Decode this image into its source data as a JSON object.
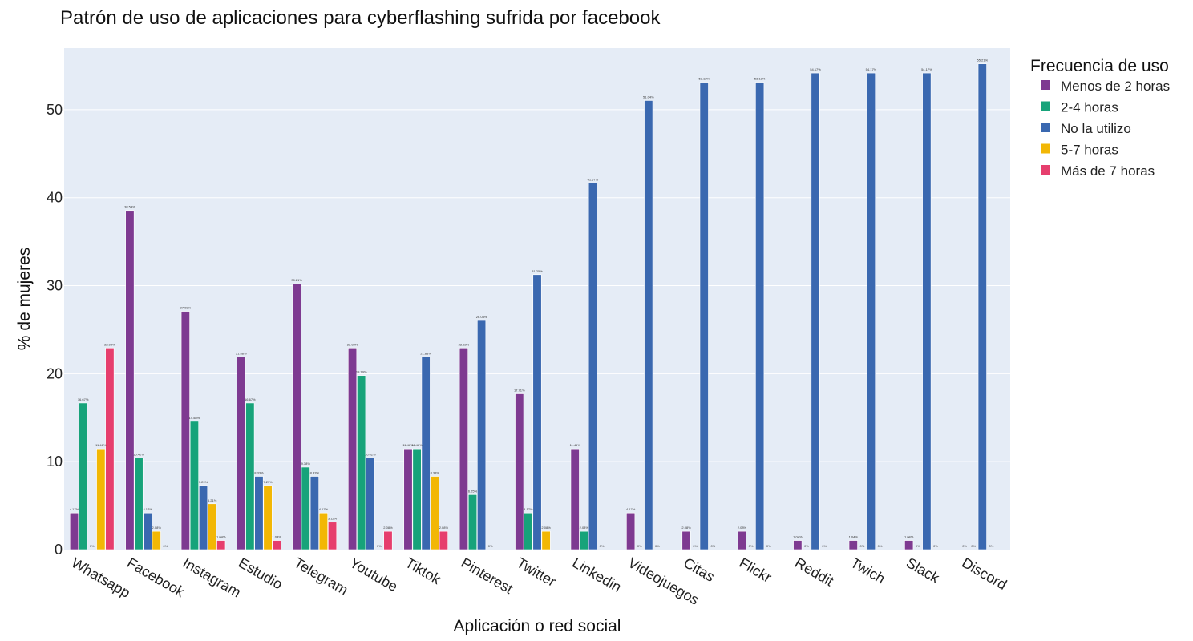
{
  "chart_data": {
    "type": "bar",
    "title": "Patrón de uso de aplicaciones para cyberflashing sufrida por facebook",
    "xlabel": "Aplicación o red social",
    "ylabel": "% de mujeres",
    "ylim": [
      0,
      57
    ],
    "yticks": [
      0,
      10,
      20,
      30,
      40,
      50
    ],
    "grid": true,
    "legend": {
      "title": "Frecuencia de uso",
      "placement": "top-right"
    },
    "categories": [
      "Whatsapp",
      "Facebook",
      "Instagram",
      "Estudio",
      "Telegram",
      "Youtube",
      "Tiktok",
      "Pinterest",
      "Twitter",
      "Linkedin",
      "Videojuegos",
      "Citas",
      "Flickr",
      "Reddit",
      "Twich",
      "Slack",
      "Discord"
    ],
    "series": [
      {
        "name": "Menos de 2 horas",
        "color": "#7e3a91",
        "values": [
          4.17,
          38.54,
          27.08,
          21.88,
          30.21,
          22.92,
          11.46,
          22.92,
          17.71,
          11.46,
          4.17,
          2.08,
          2.08,
          1.04,
          1.04,
          1.04,
          0
        ],
        "labels": [
          "4.17%",
          "38.54%",
          "27.08%",
          "21.88%",
          "30.21%",
          "22.92%",
          "11.46%",
          "22.92%",
          "17.71%",
          "11.46%",
          "4.17%",
          "2.08%",
          "2.08%",
          "1.04%",
          "1.04%",
          "1.04%",
          "0%"
        ]
      },
      {
        "name": "2-4 horas",
        "color": "#17a37a",
        "values": [
          16.67,
          10.42,
          14.58,
          16.67,
          9.38,
          19.79,
          11.46,
          6.25,
          4.17,
          2.08,
          0,
          0,
          0,
          0,
          0,
          0,
          0
        ],
        "labels": [
          "16.67%",
          "10.42%",
          "14.58%",
          "16.67%",
          "9.38%",
          "19.79%",
          "11.46%",
          "6.25%",
          "4.17%",
          "2.08%",
          "0%",
          "0%",
          "0%",
          "0%",
          "0%",
          "0%",
          "0%"
        ]
      },
      {
        "name": "No la utilizo",
        "color": "#3a68b0",
        "values": [
          0,
          4.17,
          7.29,
          8.33,
          8.33,
          10.42,
          21.88,
          26.04,
          31.25,
          41.67,
          51.04,
          53.12,
          53.12,
          54.17,
          54.17,
          54.17,
          55.21
        ],
        "labels": [
          "0%",
          "4.17%",
          "7.29%",
          "8.33%",
          "8.33%",
          "10.42%",
          "21.88%",
          "26.04%",
          "31.25%",
          "41.67%",
          "51.04%",
          "53.12%",
          "53.12%",
          "54.17%",
          "54.17%",
          "54.17%",
          "55.21%"
        ]
      },
      {
        "name": "5-7 horas",
        "color": "#f2b705",
        "values": [
          11.46,
          2.08,
          5.21,
          7.29,
          4.17,
          0,
          8.33,
          0,
          2.08,
          0,
          0,
          0,
          0,
          0,
          0,
          0,
          0
        ],
        "labels": [
          "11.46%",
          "2.08%",
          "5.21%",
          "7.29%",
          "4.17%",
          "0%",
          "8.33%",
          "0%",
          "2.08%",
          "0%",
          "0%",
          "0%",
          "0%",
          "0%",
          "0%",
          "0%",
          "0%"
        ]
      },
      {
        "name": "Más de 7 horas",
        "color": "#e63e6d",
        "values": [
          22.92,
          0,
          1.04,
          1.04,
          3.12,
          2.08,
          2.08,
          0,
          0,
          0,
          0,
          0,
          0,
          0,
          0,
          0,
          0
        ],
        "labels": [
          "22.92%",
          "0%",
          "1.04%",
          "1.04%",
          "3.12%",
          "2.08%",
          "2.08%",
          "",
          "",
          "",
          "",
          "",
          "",
          "",
          "",
          "",
          ""
        ]
      }
    ]
  }
}
